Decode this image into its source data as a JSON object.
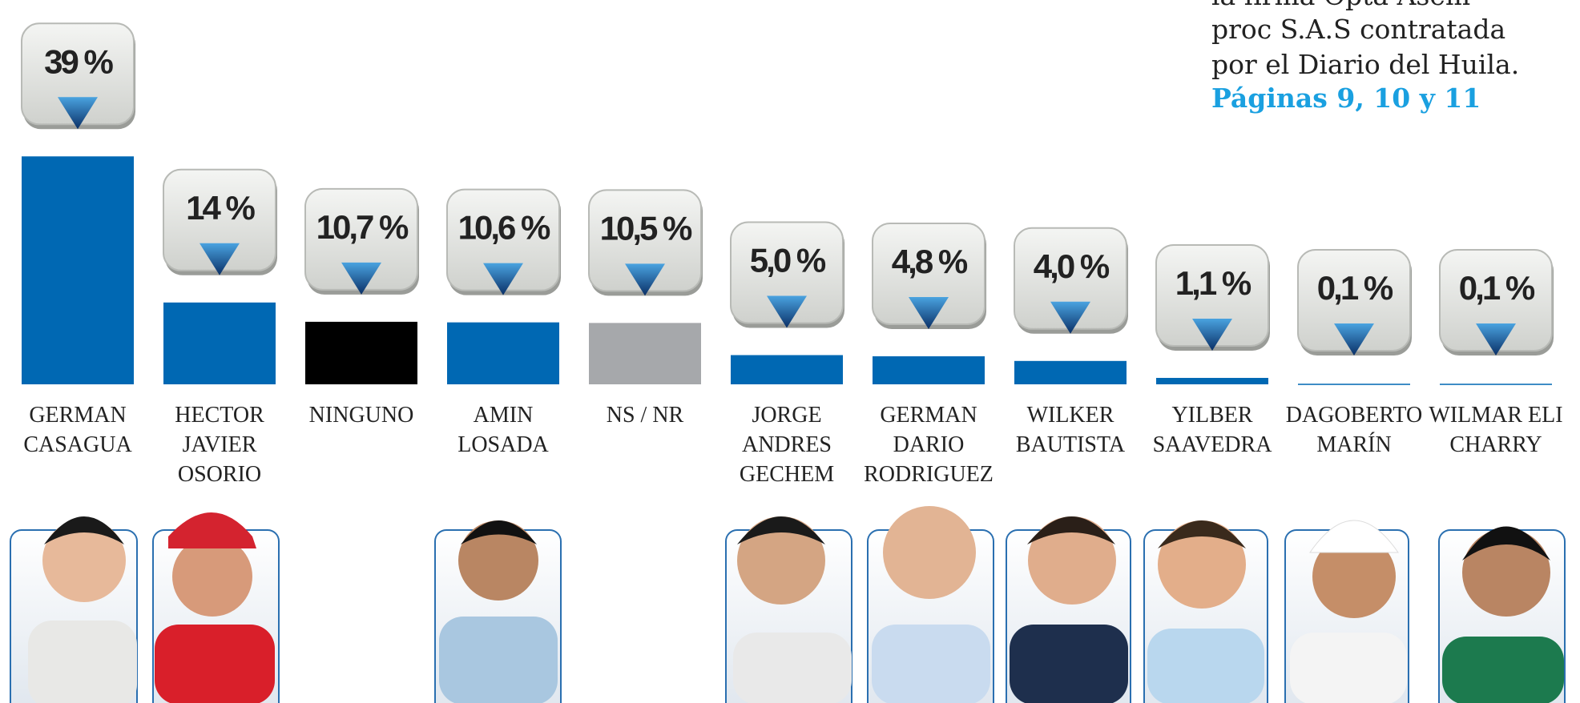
{
  "chart_data": {
    "type": "bar",
    "annotation": [
      "la firma Opta Asem-",
      "proc S.A.S contratada",
      "por el Diario del Huila."
    ],
    "annotation_link": "Páginas 9, 10 y 11",
    "categories": [
      [
        "GERMAN",
        "CASAGUA"
      ],
      [
        "HECTOR",
        "JAVIER",
        "OSORIO"
      ],
      [
        "NINGUNO"
      ],
      [
        "AMIN",
        "LOSADA"
      ],
      [
        "NS / NR"
      ],
      [
        "JORGE",
        "ANDRES",
        "GECHEM"
      ],
      [
        "GERMAN",
        "DARIO",
        "RODRIGUEZ"
      ],
      [
        "WILKER",
        "BAUTISTA"
      ],
      [
        "YILBER",
        "SAAVEDRA"
      ],
      [
        "DAGOBERTO",
        "MARÍN"
      ],
      [
        "WILMAR ELI",
        "CHARRY"
      ]
    ],
    "values": [
      39,
      14,
      10.7,
      10.6,
      10.5,
      5.0,
      4.8,
      4.0,
      1.1,
      0.1,
      0.1
    ],
    "value_labels": [
      "39 %",
      "14 %",
      "10,7 %",
      "10,6 %",
      "10,5 %",
      "5,0 %",
      "4,8 %",
      "4,0 %",
      "1,1 %",
      "0,1 %",
      "0,1 %"
    ],
    "colors": [
      "#0068b3",
      "#0068b3",
      "#000000",
      "#0068b3",
      "#a6a8ab",
      "#0068b3",
      "#0068b3",
      "#0068b3",
      "#0068b3",
      "#0068b3",
      "#0068b3"
    ],
    "ylim": [
      0,
      40
    ]
  }
}
